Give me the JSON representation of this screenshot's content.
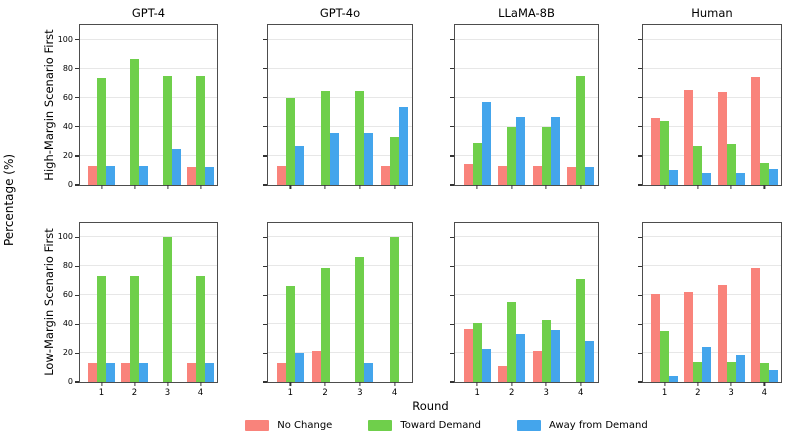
{
  "figure": {
    "shared_ylabel": "Percentage (%)",
    "shared_xlabel": "Round",
    "row_labels": [
      "High-Margin Scenario First",
      "Low-Margin Scenario First"
    ],
    "col_titles": [
      "GPT-4",
      "GPT-4o",
      "LLaMA-8B",
      "Human"
    ],
    "yticks": [
      0,
      20,
      40,
      60,
      80,
      100
    ],
    "xticks": [
      "1",
      "2",
      "3",
      "4"
    ],
    "grid": true,
    "legend_position": "bottom-center",
    "colors": {
      "no_change": "#F9837B",
      "toward_demand": "#6FCF4B",
      "away_from_demand": "#44A5EC",
      "gridline": "#E7E7E7",
      "spine": "#4D4D4D"
    }
  },
  "legend": {
    "items": [
      {
        "label": "No Change",
        "color": "#F9837B"
      },
      {
        "label": "Toward Demand",
        "color": "#6FCF4B"
      },
      {
        "label": "Away from Demand",
        "color": "#44A5EC"
      }
    ]
  },
  "chart_data": [
    {
      "type": "bar",
      "row": "High-Margin Scenario First",
      "col": "GPT-4",
      "categories": [
        "1",
        "2",
        "3",
        "4"
      ],
      "ylim": [
        0,
        110
      ],
      "yticks": [
        0,
        20,
        40,
        60,
        80,
        100
      ],
      "grid": true,
      "series": [
        {
          "name": "No Change",
          "values": [
            13.3,
            0,
            0,
            12.5
          ]
        },
        {
          "name": "Toward Demand",
          "values": [
            73.3,
            86.7,
            75,
            75
          ]
        },
        {
          "name": "Away from Demand",
          "values": [
            13.3,
            13.3,
            25,
            12.5
          ]
        }
      ]
    },
    {
      "type": "bar",
      "row": "High-Margin Scenario First",
      "col": "GPT-4o",
      "categories": [
        "1",
        "2",
        "3",
        "4"
      ],
      "ylim": [
        0,
        110
      ],
      "yticks": [
        0,
        20,
        40,
        60,
        80,
        100
      ],
      "grid": true,
      "series": [
        {
          "name": "No Change",
          "values": [
            13.3,
            0,
            0,
            13.3
          ]
        },
        {
          "name": "Toward Demand",
          "values": [
            60,
            64.3,
            64.3,
            33.3
          ]
        },
        {
          "name": "Away from Demand",
          "values": [
            26.7,
            35.7,
            35.7,
            53.3
          ]
        }
      ]
    },
    {
      "type": "bar",
      "row": "High-Margin Scenario First",
      "col": "LLaMA-8B",
      "categories": [
        "1",
        "2",
        "3",
        "4"
      ],
      "ylim": [
        0,
        110
      ],
      "yticks": [
        0,
        20,
        40,
        60,
        80,
        100
      ],
      "grid": true,
      "series": [
        {
          "name": "No Change",
          "values": [
            14.3,
            13.3,
            13.3,
            12.5
          ]
        },
        {
          "name": "Toward Demand",
          "values": [
            28.6,
            40,
            40,
            75
          ]
        },
        {
          "name": "Away from Demand",
          "values": [
            57.1,
            46.7,
            46.7,
            12.5
          ]
        }
      ]
    },
    {
      "type": "bar",
      "row": "High-Margin Scenario First",
      "col": "Human",
      "categories": [
        "1",
        "2",
        "3",
        "4"
      ],
      "ylim": [
        0,
        110
      ],
      "yticks": [
        0,
        20,
        40,
        60,
        80,
        100
      ],
      "grid": true,
      "series": [
        {
          "name": "No Change",
          "values": [
            46,
            65,
            64,
            74
          ]
        },
        {
          "name": "Toward Demand",
          "values": [
            44,
            27,
            28,
            15
          ]
        },
        {
          "name": "Away from Demand",
          "values": [
            10,
            8,
            8,
            11
          ]
        }
      ]
    },
    {
      "type": "bar",
      "row": "Low-Margin Scenario First",
      "col": "GPT-4",
      "categories": [
        "1",
        "2",
        "3",
        "4"
      ],
      "ylim": [
        0,
        110
      ],
      "yticks": [
        0,
        20,
        40,
        60,
        80,
        100
      ],
      "grid": true,
      "series": [
        {
          "name": "No Change",
          "values": [
            13.3,
            13.3,
            0,
            13.3
          ]
        },
        {
          "name": "Toward Demand",
          "values": [
            73.3,
            73.3,
            100,
            73.3
          ]
        },
        {
          "name": "Away from Demand",
          "values": [
            13.3,
            13.3,
            0,
            13.3
          ]
        }
      ]
    },
    {
      "type": "bar",
      "row": "Low-Margin Scenario First",
      "col": "GPT-4o",
      "categories": [
        "1",
        "2",
        "3",
        "4"
      ],
      "ylim": [
        0,
        110
      ],
      "yticks": [
        0,
        20,
        40,
        60,
        80,
        100
      ],
      "grid": true,
      "series": [
        {
          "name": "No Change",
          "values": [
            13.3,
            21.4,
            0,
            0
          ]
        },
        {
          "name": "Toward Demand",
          "values": [
            66.7,
            78.6,
            86.7,
            100
          ]
        },
        {
          "name": "Away from Demand",
          "values": [
            20,
            0,
            13.3,
            0
          ]
        }
      ]
    },
    {
      "type": "bar",
      "row": "Low-Margin Scenario First",
      "col": "LLaMA-8B",
      "categories": [
        "1",
        "2",
        "3",
        "4"
      ],
      "ylim": [
        0,
        110
      ],
      "yticks": [
        0,
        20,
        40,
        60,
        80,
        100
      ],
      "grid": true,
      "series": [
        {
          "name": "No Change",
          "values": [
            36.4,
            11.1,
            21.4,
            0
          ]
        },
        {
          "name": "Toward Demand",
          "values": [
            40.9,
            55.6,
            42.9,
            71.4
          ]
        },
        {
          "name": "Away from Demand",
          "values": [
            22.7,
            33.3,
            35.7,
            28.6
          ]
        }
      ]
    },
    {
      "type": "bar",
      "row": "Low-Margin Scenario First",
      "col": "Human",
      "categories": [
        "1",
        "2",
        "3",
        "4"
      ],
      "ylim": [
        0,
        110
      ],
      "yticks": [
        0,
        20,
        40,
        60,
        80,
        100
      ],
      "grid": true,
      "series": [
        {
          "name": "No Change",
          "values": [
            61,
            62,
            67,
            79
          ]
        },
        {
          "name": "Toward Demand",
          "values": [
            35,
            14,
            14,
            13
          ]
        },
        {
          "name": "Away from Demand",
          "values": [
            4,
            24,
            19,
            8
          ]
        }
      ]
    }
  ]
}
